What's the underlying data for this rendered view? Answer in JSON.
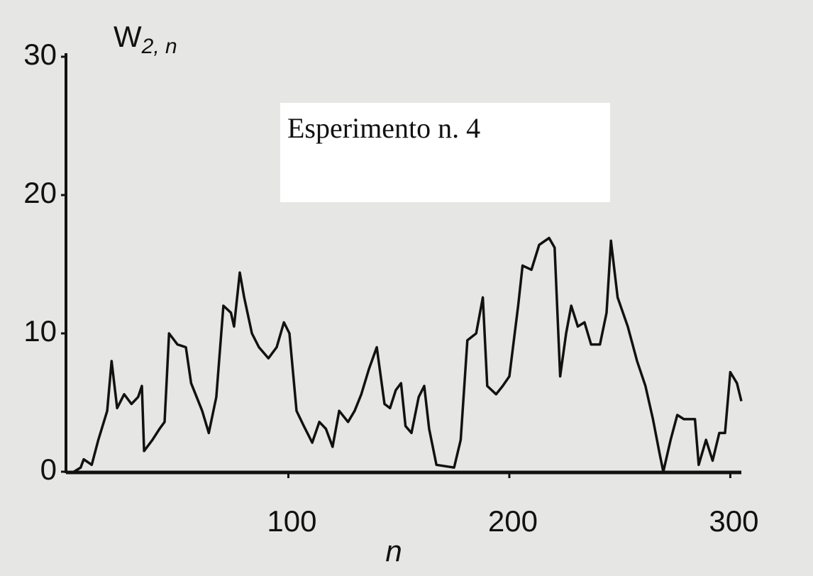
{
  "chart_data": {
    "type": "line",
    "annotation": "Esperimento n. 4",
    "y_label": "W",
    "y_label_subscript": "2, n",
    "x_label": "n",
    "xlim": [
      0,
      305
    ],
    "xticks": [
      100,
      200,
      300
    ],
    "ylim": [
      0,
      30
    ],
    "yticks": [
      0,
      10,
      20,
      30
    ],
    "grid": false,
    "series": [
      {
        "color": "#111111",
        "x": [
          3,
          6,
          7.4,
          11,
          14,
          18,
          20,
          22.5,
          25.7,
          29,
          32,
          33.7,
          34.7,
          38.5,
          41.7,
          44,
          46,
          49.8,
          53.6,
          56,
          61,
          64,
          67.4,
          70.6,
          74,
          75.4,
          78,
          80,
          83.5,
          86.7,
          91,
          94.7,
          98,
          100.5,
          103.7,
          107,
          110.8,
          114,
          117,
          120,
          123,
          127,
          130,
          133,
          136.4,
          140,
          143.5,
          146,
          148.6,
          151,
          153,
          155.7,
          159,
          161.5,
          163.7,
          167,
          175,
          178,
          181,
          185,
          188,
          190,
          194,
          197,
          200,
          204,
          206,
          210,
          213.5,
          218,
          220.5,
          223,
          225.7,
          228,
          231,
          234,
          237,
          241,
          244,
          246,
          249,
          253.6,
          257.8,
          261.6,
          265,
          268,
          269.7,
          273,
          276,
          279,
          284,
          285.7,
          289,
          292,
          295,
          297.6,
          300,
          303,
          305
        ],
        "values": [
          0,
          0.3,
          0.9,
          0.5,
          2.3,
          4.4,
          8,
          4.6,
          5.6,
          4.9,
          5.4,
          6.2,
          1.5,
          2.3,
          3.1,
          3.6,
          10,
          9.2,
          9,
          6.4,
          4.4,
          2.8,
          5.4,
          12,
          11.5,
          10.5,
          14.4,
          12.6,
          10,
          9,
          8.2,
          9,
          10.8,
          10,
          4.4,
          3.3,
          2.1,
          3.6,
          3.1,
          1.8,
          4.4,
          3.6,
          4.4,
          5.6,
          7.4,
          9,
          4.9,
          4.6,
          5.9,
          6.4,
          3.3,
          2.8,
          5.4,
          6.2,
          3.1,
          0.5,
          0.3,
          2.3,
          9.5,
          10,
          12.6,
          6.2,
          5.6,
          6.2,
          6.9,
          12,
          14.9,
          14.6,
          16.4,
          16.9,
          16.2,
          6.9,
          10,
          12,
          10.5,
          10.8,
          9.2,
          9.2,
          11.5,
          16.7,
          12.6,
          10.5,
          8,
          6.2,
          3.8,
          1.3,
          0,
          2.3,
          4.1,
          3.8,
          3.8,
          0.5,
          2.3,
          0.8,
          2.8,
          2.8,
          7.2,
          6.4,
          5.1
        ]
      }
    ]
  }
}
